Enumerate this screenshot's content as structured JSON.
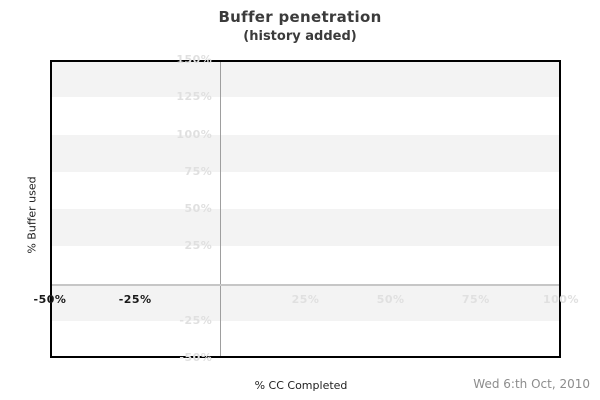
{
  "header": {
    "title": "Buffer penetration",
    "subtitle": "(history added)"
  },
  "footer": {
    "xlabel": "% CC Completed",
    "date_label": "Wed 6:th Oct, 2010"
  },
  "chart_data": {
    "type": "line",
    "title": "Buffer penetration",
    "subtitle": "(history added)",
    "xlabel": "% CC Completed",
    "ylabel": "% Buffer used",
    "xlim": [
      -50,
      100
    ],
    "ylim": [
      -50,
      150
    ],
    "x_ticks": [
      {
        "value": -50,
        "label": "-50%",
        "style": "strong"
      },
      {
        "value": -25,
        "label": "-25%",
        "style": "strong"
      },
      {
        "value": 25,
        "label": "25%",
        "style": "muted"
      },
      {
        "value": 50,
        "label": "50%",
        "style": "muted"
      },
      {
        "value": 75,
        "label": "75%",
        "style": "muted"
      },
      {
        "value": 100,
        "label": "100%",
        "style": "muted"
      }
    ],
    "y_ticks": [
      {
        "value": 150,
        "label": "150%"
      },
      {
        "value": 125,
        "label": "125%"
      },
      {
        "value": 100,
        "label": "100%"
      },
      {
        "value": 75,
        "label": "75%"
      },
      {
        "value": 50,
        "label": "50%"
      },
      {
        "value": 25,
        "label": "25%"
      },
      {
        "value": -25,
        "label": "-25%"
      },
      {
        "value": -50,
        "label": "-50%"
      }
    ],
    "zero_lines": {
      "vertical_at_x": 0,
      "horizontal_at_y": 0
    },
    "bands": {
      "step": 25,
      "first_interval_filled": true
    },
    "series": [],
    "legend_visible": false,
    "annotation_date": "Wed 6:th Oct, 2010"
  },
  "colors": {
    "band_fill": "#f3f3f3",
    "band_empty": "#ffffff",
    "muted_tick_text": "#e0e0e0",
    "strong_tick_text": "#1a1a1a",
    "zero_line_horizontal": "#c6c6c6",
    "zero_line_vertical": "#9e9e9e",
    "plot_border": "#000000",
    "title_text": "#3b3b3b",
    "axis_label_text": "#222222",
    "date_text": "#8c8c8c"
  }
}
